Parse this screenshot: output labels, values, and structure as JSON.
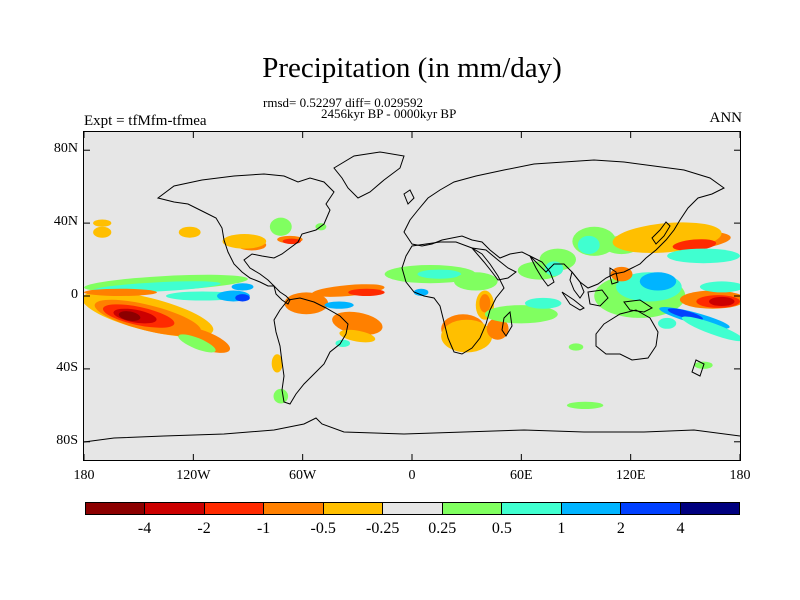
{
  "title": "Precipitation (in mm/day)",
  "stats_line": "rmsd= 0.52297 diff= 0.029592",
  "period_line": "2456kyr BP - 0000kyr BP",
  "experiment_label": "Expt = tfMfm-tfmea",
  "season_label": "ANN",
  "map": {
    "projection": "equirectangular",
    "lon_range": [
      -180,
      180
    ],
    "lat_range": [
      -90,
      90
    ],
    "y_axis_labels": [
      "80N",
      "40N",
      "0",
      "40S",
      "80S"
    ],
    "y_axis_lats": [
      80,
      40,
      0,
      -40,
      -80
    ],
    "x_axis_labels": [
      "180",
      "120W",
      "60W",
      "0",
      "60E",
      "120E",
      "180"
    ],
    "x_axis_lons": [
      -180,
      -120,
      -60,
      0,
      60,
      120,
      180
    ],
    "missing_color": "#e6e6e6"
  },
  "colorbar": {
    "colors": [
      "#8c0000",
      "#cc0000",
      "#ff2a00",
      "#ff8000",
      "#ffbf00",
      "#e6e6e6",
      "#80ff60",
      "#40ffd0",
      "#00b4ff",
      "#0040ff",
      "#00007f"
    ],
    "labels": [
      "-4",
      "-2",
      "-1",
      "-0.5",
      "-0.25",
      "0.25",
      "0.5",
      "1",
      "2",
      "4"
    ],
    "levels": [
      -4,
      -2,
      -1,
      -0.5,
      -0.25,
      0.25,
      0.5,
      1,
      2,
      4
    ]
  },
  "anomaly_patches": [
    {
      "name": "south-pacific-dry-outer",
      "lon": -145,
      "lat": -10,
      "rx": 37,
      "ry": 9,
      "rot": 14,
      "color": "#ffbf00"
    },
    {
      "name": "south-pacific-dry-1",
      "lon": -145,
      "lat": -12,
      "rx": 30,
      "ry": 7,
      "rot": 14,
      "color": "#ff8000"
    },
    {
      "name": "south-pacific-dry-2",
      "lon": -150,
      "lat": -11,
      "rx": 20,
      "ry": 5,
      "rot": 12,
      "color": "#ff2a00"
    },
    {
      "name": "south-pacific-dry-3",
      "lon": -152,
      "lat": -11,
      "rx": 12,
      "ry": 3.5,
      "rot": 10,
      "color": "#cc0000"
    },
    {
      "name": "south-pacific-dry-core",
      "lon": -155,
      "lat": -11,
      "rx": 6,
      "ry": 2.5,
      "rot": 10,
      "color": "#8c0000"
    },
    {
      "name": "pacific-dry-tail",
      "lon": -115,
      "lat": -24,
      "rx": 16,
      "ry": 5,
      "rot": 20,
      "color": "#ff8000"
    },
    {
      "name": "pacific-wet-tail",
      "lon": -118,
      "lat": -26,
      "rx": 11,
      "ry": 3,
      "rot": 22,
      "color": "#80ff60"
    },
    {
      "name": "east-pacific-itcz-green",
      "lon": -135,
      "lat": 7,
      "rx": 45,
      "ry": 4,
      "rot": -3,
      "color": "#80ff60"
    },
    {
      "name": "east-pacific-itcz-wet",
      "lon": -140,
      "lat": 5,
      "rx": 35,
      "ry": 2.5,
      "rot": -3,
      "color": "#40ffd0"
    },
    {
      "name": "east-pacific-dry-band",
      "lon": -160,
      "lat": 2,
      "rx": 20,
      "ry": 2,
      "rot": 0,
      "color": "#ff8000"
    },
    {
      "name": "central-pacific-wet",
      "lon": -115,
      "lat": 0,
      "rx": 20,
      "ry": 2.5,
      "rot": 0,
      "color": "#40ffd0"
    },
    {
      "name": "east-pacific-blue",
      "lon": -98,
      "lat": 0,
      "rx": 9,
      "ry": 3,
      "rot": 0,
      "color": "#00b4ff"
    },
    {
      "name": "east-pacific-blue-core",
      "lon": -93,
      "lat": -1,
      "rx": 4,
      "ry": 2,
      "rot": 0,
      "color": "#0040ff"
    },
    {
      "name": "south-america-orange",
      "lon": -58,
      "lat": -4,
      "rx": 12,
      "ry": 6,
      "rot": 0,
      "color": "#ff8000"
    },
    {
      "name": "north-atlantic-orange",
      "lon": -35,
      "lat": 3,
      "rx": 20,
      "ry": 3,
      "rot": -5,
      "color": "#ff8000"
    },
    {
      "name": "north-atlantic-red",
      "lon": -25,
      "lat": 2,
      "rx": 10,
      "ry": 2,
      "rot": 0,
      "color": "#ff2a00"
    },
    {
      "name": "tropical-atlantic-blue",
      "lon": -40,
      "lat": -5,
      "rx": 8,
      "ry": 2,
      "rot": 0,
      "color": "#00b4ff"
    },
    {
      "name": "south-atlantic-orange",
      "lon": -30,
      "lat": -15,
      "rx": 14,
      "ry": 6,
      "rot": 10,
      "color": "#ff8000"
    },
    {
      "name": "south-atlantic-yellow",
      "lon": -30,
      "lat": -22,
      "rx": 10,
      "ry": 3,
      "rot": 10,
      "color": "#ffbf00"
    },
    {
      "name": "south-atlantic-wet",
      "lon": -38,
      "lat": -26,
      "rx": 4,
      "ry": 2,
      "rot": 0,
      "color": "#40ffd0"
    },
    {
      "name": "patagonia-green",
      "lon": -72,
      "lat": -55,
      "rx": 4,
      "ry": 4,
      "rot": 0,
      "color": "#80ff60"
    },
    {
      "name": "chile-yellow",
      "lon": -74,
      "lat": -37,
      "rx": 3,
      "ry": 5,
      "rot": 0,
      "color": "#ffbf00"
    },
    {
      "name": "gulf-orange",
      "lon": -88,
      "lat": 28,
      "rx": 8,
      "ry": 3,
      "rot": 0,
      "color": "#ff8000"
    },
    {
      "name": "gulf-yellow",
      "lon": -92,
      "lat": 30,
      "rx": 12,
      "ry": 4,
      "rot": 0,
      "color": "#ffbf00"
    },
    {
      "name": "us-east-green",
      "lon": -72,
      "lat": 38,
      "rx": 6,
      "ry": 5,
      "rot": 0,
      "color": "#80ff60"
    },
    {
      "name": "atlantic-orange",
      "lon": -67,
      "lat": 31,
      "rx": 7,
      "ry": 2,
      "rot": 0,
      "color": "#ff8000"
    },
    {
      "name": "north-atlantic-red-2",
      "lon": -66,
      "lat": 30,
      "rx": 5,
      "ry": 1.5,
      "rot": 0,
      "color": "#ff2a00"
    },
    {
      "name": "pacific-east-blue",
      "lon": -93,
      "lat": 5,
      "rx": 6,
      "ry": 2,
      "rot": 0,
      "color": "#00b4ff"
    },
    {
      "name": "hawaii-orange",
      "lon": -170,
      "lat": 35,
      "rx": 5,
      "ry": 3,
      "rot": 0,
      "color": "#ffbf00"
    },
    {
      "name": "north-pacific-dry",
      "lon": -122,
      "lat": 35,
      "rx": 6,
      "ry": 3,
      "rot": 0,
      "color": "#ffbf00"
    },
    {
      "name": "sahel-green",
      "lon": 10,
      "lat": 12,
      "rx": 25,
      "ry": 5,
      "rot": 0,
      "color": "#80ff60"
    },
    {
      "name": "sahel-cyan",
      "lon": 15,
      "lat": 12,
      "rx": 12,
      "ry": 2.5,
      "rot": 0,
      "color": "#40ffd0"
    },
    {
      "name": "east-africa-green",
      "lon": 35,
      "lat": 8,
      "rx": 12,
      "ry": 5,
      "rot": 0,
      "color": "#80ff60"
    },
    {
      "name": "east-africa-yellow",
      "lon": 40,
      "lat": -5,
      "rx": 5,
      "ry": 8,
      "rot": 0,
      "color": "#ffbf00"
    },
    {
      "name": "east-africa-orange",
      "lon": 40,
      "lat": -4,
      "rx": 3,
      "ry": 5,
      "rot": 0,
      "color": "#ff8000"
    },
    {
      "name": "africa-blue",
      "lon": 5,
      "lat": 2,
      "rx": 4,
      "ry": 2,
      "rot": 0,
      "color": "#00b4ff"
    },
    {
      "name": "south-africa-orange",
      "lon": 28,
      "lat": -18,
      "rx": 12,
      "ry": 8,
      "rot": 0,
      "color": "#ff8000"
    },
    {
      "name": "south-africa-yellow",
      "lon": 30,
      "lat": -22,
      "rx": 14,
      "ry": 9,
      "rot": 0,
      "color": "#ffbf00"
    },
    {
      "name": "madagascar-orange",
      "lon": 47,
      "lat": -18,
      "rx": 6,
      "ry": 6,
      "rot": 0,
      "color": "#ff8000"
    },
    {
      "name": "indian-ocean-green",
      "lon": 60,
      "lat": -10,
      "rx": 20,
      "ry": 5,
      "rot": 0,
      "color": "#80ff60"
    },
    {
      "name": "indian-ocean-cyan",
      "lon": 72,
      "lat": -4,
      "rx": 10,
      "ry": 3,
      "rot": 0,
      "color": "#40ffd0"
    },
    {
      "name": "arabian-sea-green",
      "lon": 70,
      "lat": 14,
      "rx": 12,
      "ry": 5,
      "rot": 0,
      "color": "#80ff60"
    },
    {
      "name": "india-green",
      "lon": 80,
      "lat": 20,
      "rx": 10,
      "ry": 6,
      "rot": 0,
      "color": "#80ff60"
    },
    {
      "name": "india-cyan",
      "lon": 78,
      "lat": 15,
      "rx": 5,
      "ry": 4,
      "rot": 0,
      "color": "#40ffd0"
    },
    {
      "name": "china-green",
      "lon": 100,
      "lat": 30,
      "rx": 12,
      "ry": 8,
      "rot": 0,
      "color": "#80ff60"
    },
    {
      "name": "china-cyan",
      "lon": 97,
      "lat": 28,
      "rx": 6,
      "ry": 5,
      "rot": 0,
      "color": "#40ffd0"
    },
    {
      "name": "east-china-green",
      "lon": 115,
      "lat": 28,
      "rx": 10,
      "ry": 5,
      "rot": 0,
      "color": "#80ff60"
    },
    {
      "name": "west-pacific-orange-north",
      "lon": 150,
      "lat": 30,
      "rx": 25,
      "ry": 5,
      "rot": -5,
      "color": "#ff8000"
    },
    {
      "name": "west-pacific-yellow-north",
      "lon": 140,
      "lat": 32,
      "rx": 30,
      "ry": 8,
      "rot": -5,
      "color": "#ffbf00"
    },
    {
      "name": "west-pacific-red-north",
      "lon": 155,
      "lat": 28,
      "rx": 12,
      "ry": 3,
      "rot": -5,
      "color": "#ff2a00"
    },
    {
      "name": "west-pacific-cyan-north",
      "lon": 160,
      "lat": 22,
      "rx": 20,
      "ry": 4,
      "rot": 0,
      "color": "#40ffd0"
    },
    {
      "name": "maritime-continent-green",
      "lon": 125,
      "lat": 0,
      "rx": 25,
      "ry": 12,
      "rot": 0,
      "color": "#80ff60"
    },
    {
      "name": "maritime-continent-cyan",
      "lon": 130,
      "lat": 5,
      "rx": 18,
      "ry": 8,
      "rot": 0,
      "color": "#40ffd0"
    },
    {
      "name": "maritime-continent-blue",
      "lon": 135,
      "lat": 8,
      "rx": 10,
      "ry": 5,
      "rot": 0,
      "color": "#00b4ff"
    },
    {
      "name": "south-china-sea-orange",
      "lon": 115,
      "lat": 12,
      "rx": 6,
      "ry": 4,
      "rot": 0,
      "color": "#ff8000"
    },
    {
      "name": "west-pacific-red-core",
      "lon": 165,
      "lat": -2,
      "rx": 18,
      "ry": 5,
      "rot": 0,
      "color": "#ff8000"
    },
    {
      "name": "west-pacific-red",
      "lon": 168,
      "lat": -3,
      "rx": 12,
      "ry": 3.5,
      "rot": 0,
      "color": "#ff2a00"
    },
    {
      "name": "west-pacific-darkred",
      "lon": 170,
      "lat": -3,
      "rx": 7,
      "ry": 2.5,
      "rot": 0,
      "color": "#cc0000"
    },
    {
      "name": "spcz-blue",
      "lon": 155,
      "lat": -12,
      "rx": 20,
      "ry": 3,
      "rot": 15,
      "color": "#00b4ff"
    },
    {
      "name": "spcz-darkblue",
      "lon": 150,
      "lat": -10,
      "rx": 10,
      "ry": 2,
      "rot": 15,
      "color": "#0040ff"
    },
    {
      "name": "spcz-cyan",
      "lon": 165,
      "lat": -18,
      "rx": 18,
      "ry": 3,
      "rot": 20,
      "color": "#40ffd0"
    },
    {
      "name": "north-pacific-cyan",
      "lon": 170,
      "lat": 5,
      "rx": 12,
      "ry": 3,
      "rot": 0,
      "color": "#40ffd0"
    },
    {
      "name": "australia-cyan",
      "lon": 140,
      "lat": -15,
      "rx": 5,
      "ry": 3,
      "rot": 0,
      "color": "#40ffd0"
    },
    {
      "name": "nz-green",
      "lon": 160,
      "lat": -38,
      "rx": 5,
      "ry": 2,
      "rot": 0,
      "color": "#80ff60"
    },
    {
      "name": "southern-ocean-green",
      "lon": 95,
      "lat": -60,
      "rx": 10,
      "ry": 2,
      "rot": 0,
      "color": "#80ff60"
    },
    {
      "name": "south-indian-green",
      "lon": 90,
      "lat": -28,
      "rx": 4,
      "ry": 2,
      "rot": 0,
      "color": "#80ff60"
    },
    {
      "name": "greenland-green",
      "lon": -50,
      "lat": 38,
      "rx": 3,
      "ry": 2,
      "rot": 0,
      "color": "#80ff60"
    },
    {
      "name": "north-atlantic-yellow-2",
      "lon": -170,
      "lat": 40,
      "rx": 5,
      "ry": 2,
      "rot": 0,
      "color": "#ffbf00"
    }
  ]
}
